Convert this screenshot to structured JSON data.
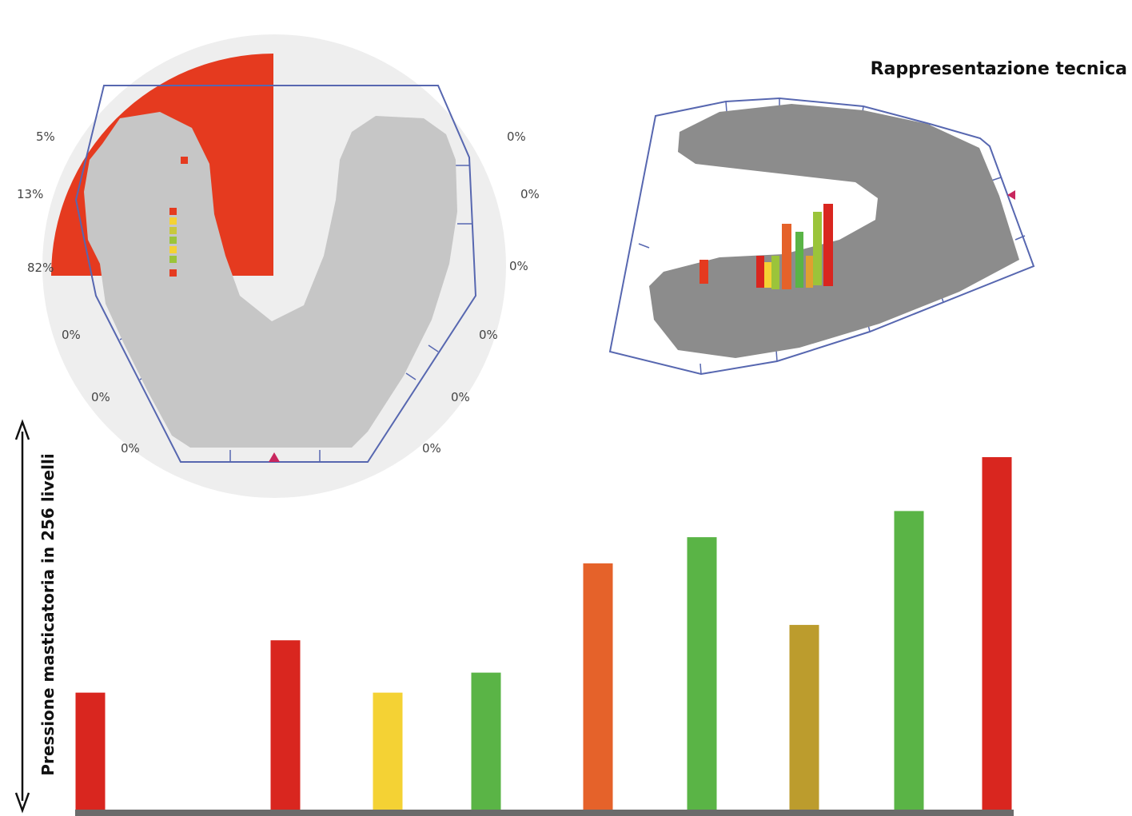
{
  "title": "Rappresentazione tecnica",
  "colors": {
    "red": "#d9261f",
    "yellow": "#f4d234",
    "green": "#5ab446",
    "orange": "#e5622a",
    "olive": "#bc9c2d",
    "arch_light": "#c6c6c6",
    "arch_dark": "#8c8c8c",
    "outline": "#5767b0",
    "heat_red": "#e53a1f"
  },
  "occlusal_map": {
    "left_percentages": [
      "5%",
      "13%",
      "82%",
      "0%",
      "0%",
      "0%"
    ],
    "right_percentages": [
      "0%",
      "0%",
      "0%",
      "0%",
      "0%",
      "0%"
    ]
  },
  "chart_data": {
    "type": "bar",
    "ylabel": "Pressione masticatoria in 256 livelli",
    "ylim": [
      0,
      256
    ],
    "colors": [
      "red",
      "red",
      "yellow",
      "green",
      "orange",
      "green",
      "olive",
      "green",
      "red"
    ],
    "values": [
      76,
      110,
      76,
      89,
      160,
      177,
      120,
      194,
      229
    ]
  }
}
